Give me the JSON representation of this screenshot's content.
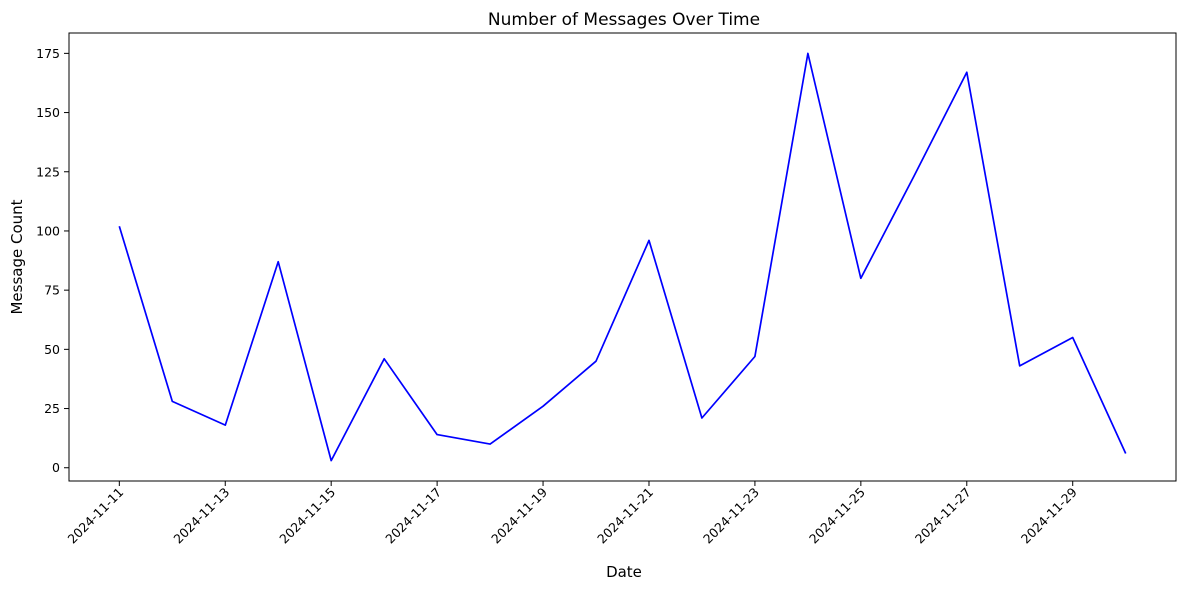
{
  "chart_data": {
    "type": "line",
    "title": "Number of Messages Over Time",
    "xlabel": "Date",
    "ylabel": "Message Count",
    "x": [
      "2024-11-11",
      "2024-11-12",
      "2024-11-13",
      "2024-11-14",
      "2024-11-15",
      "2024-11-16",
      "2024-11-17",
      "2024-11-18",
      "2024-11-19",
      "2024-11-20",
      "2024-11-21",
      "2024-11-22",
      "2024-11-23",
      "2024-11-24",
      "2024-11-25",
      "2024-11-26",
      "2024-11-27",
      "2024-11-28",
      "2024-11-29",
      "2024-11-30"
    ],
    "series": [
      {
        "values": [
          102,
          28,
          18,
          87,
          3,
          46,
          14,
          10,
          26,
          45,
          96,
          21,
          47,
          175,
          80,
          123,
          167,
          43,
          55,
          6
        ],
        "color": "#0000ff"
      }
    ],
    "xticks": [
      "2024-11-11",
      "2024-11-13",
      "2024-11-15",
      "2024-11-17",
      "2024-11-19",
      "2024-11-21",
      "2024-11-23",
      "2024-11-25",
      "2024-11-27",
      "2024-11-29"
    ],
    "yticks": [
      0,
      25,
      50,
      75,
      100,
      125,
      150,
      175
    ],
    "ylim": [
      -5.6,
      183.6
    ],
    "grid": false,
    "legend": "none"
  }
}
